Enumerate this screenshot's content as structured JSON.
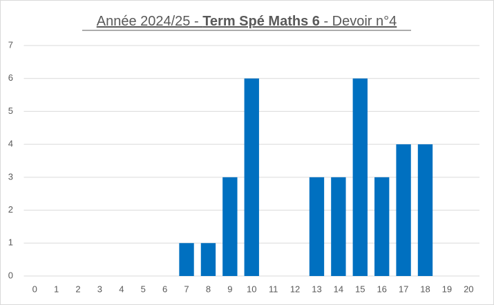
{
  "chart_data": {
    "type": "bar",
    "title_parts": [
      "Année 2024/25 - ",
      "Term Spé Maths 6",
      " - Devoir n°4"
    ],
    "categories": [
      "0",
      "1",
      "2",
      "3",
      "4",
      "5",
      "6",
      "7",
      "8",
      "9",
      "10",
      "11",
      "12",
      "13",
      "14",
      "15",
      "16",
      "17",
      "18",
      "19",
      "20"
    ],
    "values": [
      0,
      0,
      0,
      0,
      0,
      0,
      0,
      1,
      1,
      3,
      6,
      0,
      0,
      3,
      3,
      6,
      3,
      4,
      4,
      0,
      0
    ],
    "color": "#0070c0",
    "ylim": [
      0,
      7
    ],
    "yticks": [
      0,
      1,
      2,
      3,
      4,
      5,
      6,
      7
    ],
    "grid": true
  }
}
